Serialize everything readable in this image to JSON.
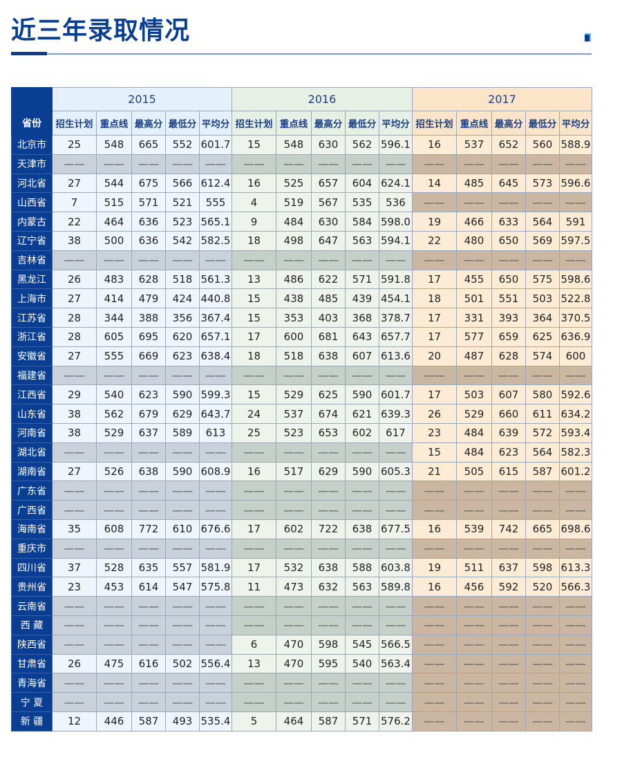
{
  "title": "近三年录取情况",
  "table": {
    "province_header": "省份",
    "years": [
      "2015",
      "2016",
      "2017"
    ],
    "columns": [
      "招生计划",
      "重点线",
      "最高分",
      "最低分",
      "平均分"
    ],
    "rows": [
      {
        "province": "北京市",
        "y2015": [
          "25",
          "548",
          "665",
          "552",
          "601.7"
        ],
        "y2016": [
          "15",
          "548",
          "630",
          "562",
          "596.1"
        ],
        "y2017": [
          "16",
          "537",
          "652",
          "560",
          "588.9"
        ]
      },
      {
        "province": "天津市",
        "y2015": [
          "——",
          "——",
          "——",
          "——",
          "——"
        ],
        "y2016": [
          "——",
          "——",
          "——",
          "——",
          "——"
        ],
        "y2017": [
          "——",
          "——",
          "——",
          "——",
          "——"
        ]
      },
      {
        "province": "河北省",
        "y2015": [
          "27",
          "544",
          "675",
          "566",
          "612.4"
        ],
        "y2016": [
          "16",
          "525",
          "657",
          "604",
          "624.1"
        ],
        "y2017": [
          "14",
          "485",
          "645",
          "573",
          "596.6"
        ]
      },
      {
        "province": "山西省",
        "y2015": [
          "7",
          "515",
          "571",
          "521",
          "555"
        ],
        "y2016": [
          "4",
          "519",
          "567",
          "535",
          "536"
        ],
        "y2017": [
          "——",
          "——",
          "——",
          "——",
          "——"
        ]
      },
      {
        "province": "内蒙古",
        "y2015": [
          "22",
          "464",
          "636",
          "523",
          "565.1"
        ],
        "y2016": [
          "9",
          "484",
          "630",
          "584",
          "598.0"
        ],
        "y2017": [
          "19",
          "466",
          "633",
          "564",
          "591"
        ]
      },
      {
        "province": "辽宁省",
        "y2015": [
          "38",
          "500",
          "636",
          "542",
          "582.5"
        ],
        "y2016": [
          "18",
          "498",
          "647",
          "563",
          "594.1"
        ],
        "y2017": [
          "22",
          "480",
          "650",
          "569",
          "597.5"
        ]
      },
      {
        "province": "吉林省",
        "y2015": [
          "——",
          "——",
          "——",
          "——",
          "——"
        ],
        "y2016": [
          "——",
          "——",
          "——",
          "——",
          "——"
        ],
        "y2017": [
          "——",
          "——",
          "——",
          "——",
          "——"
        ]
      },
      {
        "province": "黑龙江",
        "y2015": [
          "26",
          "483",
          "628",
          "518",
          "561.3"
        ],
        "y2016": [
          "13",
          "486",
          "622",
          "571",
          "591.8"
        ],
        "y2017": [
          "17",
          "455",
          "650",
          "575",
          "598.6"
        ]
      },
      {
        "province": "上海市",
        "y2015": [
          "27",
          "414",
          "479",
          "424",
          "440.8"
        ],
        "y2016": [
          "15",
          "438",
          "485",
          "439",
          "454.1"
        ],
        "y2017": [
          "18",
          "501",
          "551",
          "503",
          "522.8"
        ]
      },
      {
        "province": "江苏省",
        "y2015": [
          "28",
          "344",
          "388",
          "356",
          "367.4"
        ],
        "y2016": [
          "15",
          "353",
          "403",
          "368",
          "378.7"
        ],
        "y2017": [
          "17",
          "331",
          "393",
          "364",
          "370.5"
        ]
      },
      {
        "province": "浙江省",
        "y2015": [
          "28",
          "605",
          "695",
          "620",
          "657.1"
        ],
        "y2016": [
          "17",
          "600",
          "681",
          "643",
          "657.7"
        ],
        "y2017": [
          "17",
          "577",
          "659",
          "625",
          "636.9"
        ]
      },
      {
        "province": "安徽省",
        "y2015": [
          "27",
          "555",
          "669",
          "623",
          "638.4"
        ],
        "y2016": [
          "18",
          "518",
          "638",
          "607",
          "613.6"
        ],
        "y2017": [
          "20",
          "487",
          "628",
          "574",
          "600"
        ]
      },
      {
        "province": "福建省",
        "y2015": [
          "——",
          "——",
          "——",
          "——",
          "——"
        ],
        "y2016": [
          "——",
          "——",
          "——",
          "——",
          "——"
        ],
        "y2017": [
          "——",
          "——",
          "——",
          "——",
          "——"
        ]
      },
      {
        "province": "江西省",
        "y2015": [
          "29",
          "540",
          "623",
          "590",
          "599.3"
        ],
        "y2016": [
          "15",
          "529",
          "625",
          "590",
          "601.7"
        ],
        "y2017": [
          "17",
          "503",
          "607",
          "580",
          "592.6"
        ]
      },
      {
        "province": "山东省",
        "y2015": [
          "38",
          "562",
          "679",
          "629",
          "643.7"
        ],
        "y2016": [
          "24",
          "537",
          "674",
          "621",
          "639.3"
        ],
        "y2017": [
          "26",
          "529",
          "660",
          "611",
          "634.2"
        ]
      },
      {
        "province": "河南省",
        "y2015": [
          "38",
          "529",
          "637",
          "589",
          "613"
        ],
        "y2016": [
          "25",
          "523",
          "653",
          "602",
          "617"
        ],
        "y2017": [
          "23",
          "484",
          "639",
          "572",
          "593.4"
        ]
      },
      {
        "province": "湖北省",
        "y2015": [
          "——",
          "——",
          "——",
          "——",
          "——"
        ],
        "y2016": [
          "——",
          "——",
          "——",
          "——",
          "——"
        ],
        "y2017": [
          "15",
          "484",
          "623",
          "564",
          "582.3"
        ]
      },
      {
        "province": "湖南省",
        "y2015": [
          "27",
          "526",
          "638",
          "590",
          "608.9"
        ],
        "y2016": [
          "16",
          "517",
          "629",
          "590",
          "605.3"
        ],
        "y2017": [
          "21",
          "505",
          "615",
          "587",
          "601.2"
        ]
      },
      {
        "province": "广东省",
        "y2015": [
          "——",
          "——",
          "——",
          "——",
          "——"
        ],
        "y2016": [
          "——",
          "——",
          "——",
          "——",
          "——"
        ],
        "y2017": [
          "——",
          "——",
          "——",
          "——",
          "——"
        ]
      },
      {
        "province": "广西省",
        "y2015": [
          "——",
          "——",
          "——",
          "——",
          "——"
        ],
        "y2016": [
          "——",
          "——",
          "——",
          "——",
          "——"
        ],
        "y2017": [
          "——",
          "——",
          "——",
          "——",
          "——"
        ]
      },
      {
        "province": "海南省",
        "y2015": [
          "35",
          "608",
          "772",
          "610",
          "676.6"
        ],
        "y2016": [
          "17",
          "602",
          "722",
          "638",
          "677.5"
        ],
        "y2017": [
          "16",
          "539",
          "742",
          "665",
          "698.6"
        ]
      },
      {
        "province": "重庆市",
        "y2015": [
          "——",
          "——",
          "——",
          "——",
          "——"
        ],
        "y2016": [
          "——",
          "——",
          "——",
          "——",
          "——"
        ],
        "y2017": [
          "——",
          "——",
          "——",
          "——",
          "——"
        ]
      },
      {
        "province": "四川省",
        "y2015": [
          "37",
          "528",
          "635",
          "557",
          "581.9"
        ],
        "y2016": [
          "17",
          "532",
          "638",
          "588",
          "603.8"
        ],
        "y2017": [
          "19",
          "511",
          "637",
          "598",
          "613.3"
        ]
      },
      {
        "province": "贵州省",
        "y2015": [
          "23",
          "453",
          "614",
          "547",
          "575.8"
        ],
        "y2016": [
          "11",
          "473",
          "632",
          "563",
          "589.8"
        ],
        "y2017": [
          "16",
          "456",
          "592",
          "520",
          "566.3"
        ]
      },
      {
        "province": "云南省",
        "y2015": [
          "——",
          "——",
          "——",
          "——",
          "——"
        ],
        "y2016": [
          "——",
          "——",
          "——",
          "——",
          "——"
        ],
        "y2017": [
          "——",
          "——",
          "——",
          "——",
          "——"
        ]
      },
      {
        "province": "西 藏",
        "y2015": [
          "——",
          "——",
          "——",
          "——",
          "——"
        ],
        "y2016": [
          "——",
          "——",
          "——",
          "——",
          "——"
        ],
        "y2017": [
          "——",
          "——",
          "——",
          "——",
          "——"
        ]
      },
      {
        "province": "陕西省",
        "y2015": [
          "——",
          "——",
          "——",
          "——",
          "——"
        ],
        "y2016": [
          "6",
          "470",
          "598",
          "545",
          "566.5"
        ],
        "y2017": [
          "——",
          "——",
          "——",
          "——",
          "——"
        ]
      },
      {
        "province": "甘肃省",
        "y2015": [
          "26",
          "475",
          "616",
          "502",
          "556.4"
        ],
        "y2016": [
          "13",
          "470",
          "595",
          "540",
          "563.4"
        ],
        "y2017": [
          "——",
          "——",
          "——",
          "——",
          "——"
        ]
      },
      {
        "province": "青海省",
        "y2015": [
          "——",
          "——",
          "——",
          "——",
          "——"
        ],
        "y2016": [
          "——",
          "——",
          "——",
          "——",
          "——"
        ],
        "y2017": [
          "——",
          "——",
          "——",
          "——",
          "——"
        ]
      },
      {
        "province": "宁 夏",
        "y2015": [
          "——",
          "——",
          "——",
          "——",
          "——"
        ],
        "y2016": [
          "——",
          "——",
          "——",
          "——",
          "——"
        ],
        "y2017": [
          "——",
          "——",
          "——",
          "——",
          "——"
        ]
      },
      {
        "province": "新 疆",
        "y2015": [
          "12",
          "446",
          "587",
          "493",
          "535.4"
        ],
        "y2016": [
          "5",
          "464",
          "587",
          "571",
          "576.2"
        ],
        "y2017": [
          "——",
          "——",
          "——",
          "——",
          "——"
        ]
      }
    ]
  },
  "colors": {
    "brand": "#0a3e93",
    "empty_2015": "#c9d1da",
    "empty_2016": "#c5d0c9",
    "empty_2017": "#cbb7a1"
  }
}
